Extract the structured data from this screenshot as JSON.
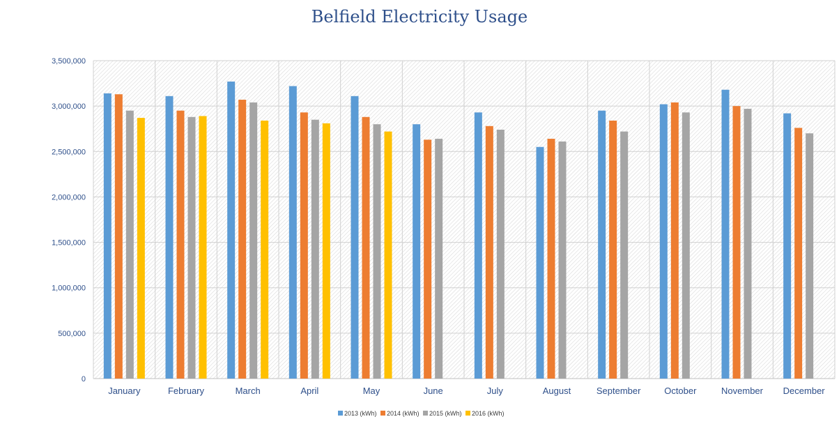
{
  "chart_data": {
    "type": "bar",
    "title": "Belfield Electricity Usage",
    "categories": [
      "January",
      "February",
      "March",
      "April",
      "May",
      "June",
      "July",
      "August",
      "September",
      "October",
      "November",
      "December"
    ],
    "series": [
      {
        "name": "2013 (kWh)",
        "color": "#5b9bd5",
        "values": [
          3140000,
          3110000,
          3270000,
          3220000,
          3110000,
          2800000,
          2930000,
          2550000,
          2950000,
          3020000,
          3180000,
          2920000
        ]
      },
      {
        "name": "2014 (kWh)",
        "color": "#ed7d31",
        "values": [
          3130000,
          2950000,
          3070000,
          2930000,
          2880000,
          2630000,
          2780000,
          2640000,
          2840000,
          3040000,
          3000000,
          2760000
        ]
      },
      {
        "name": "2015 (kWh)",
        "color": "#a5a5a5",
        "values": [
          2950000,
          2880000,
          3040000,
          2850000,
          2800000,
          2640000,
          2740000,
          2610000,
          2720000,
          2930000,
          2970000,
          2700000
        ]
      },
      {
        "name": "2016 (kWh)",
        "color": "#ffc000",
        "values": [
          2870000,
          2890000,
          2840000,
          2810000,
          2720000,
          null,
          null,
          null,
          null,
          null,
          null,
          null
        ]
      }
    ],
    "yticks": [
      "0",
      "500,000",
      "1,000,000",
      "1,500,000",
      "2,000,000",
      "2,500,000",
      "3,000,000",
      "3,500,000"
    ],
    "ylim": [
      0,
      3500000
    ],
    "xlabel": "",
    "ylabel": "",
    "grid": true,
    "legend": "bottom"
  }
}
